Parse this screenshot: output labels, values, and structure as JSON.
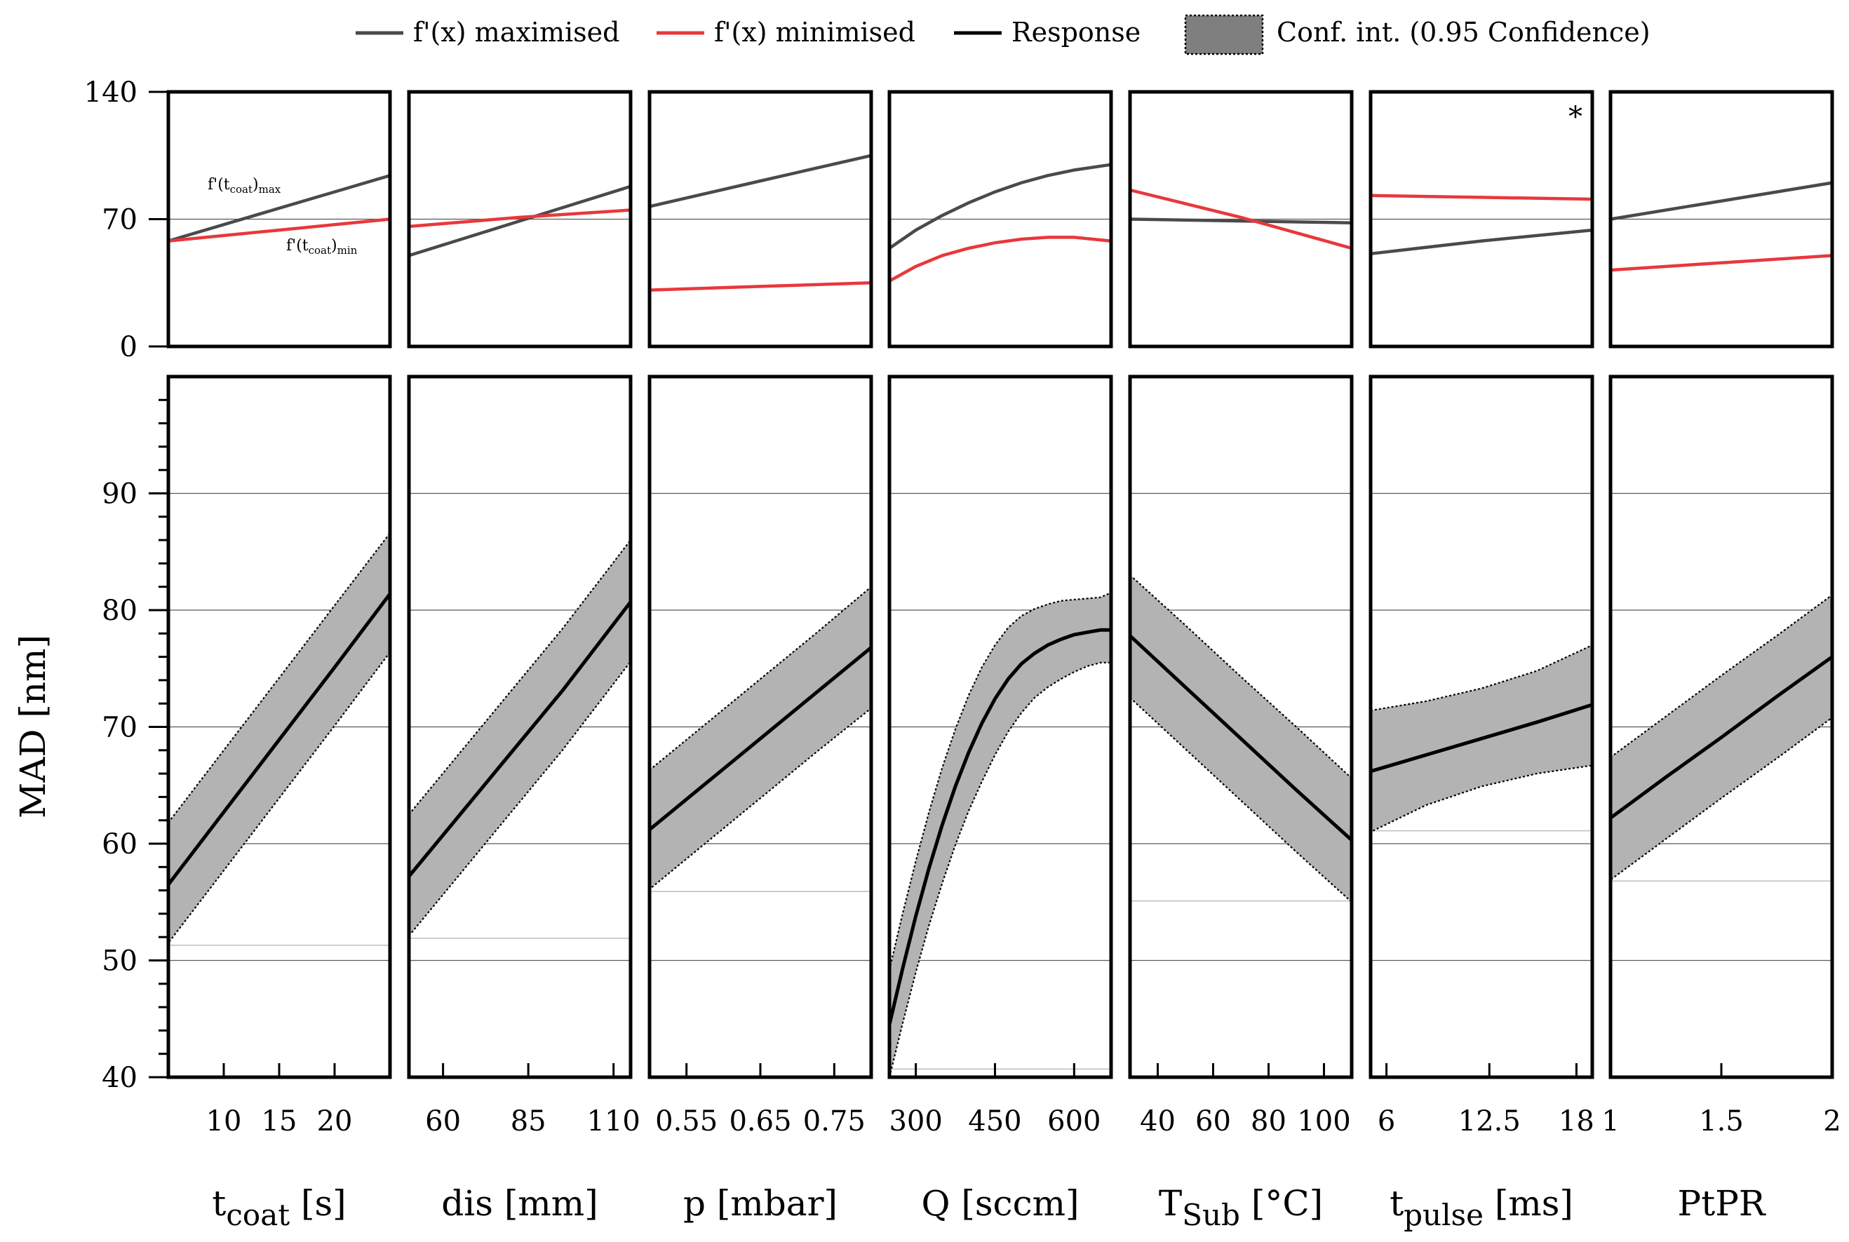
{
  "legend": {
    "entries": [
      {
        "label": "f'(x) maximised",
        "kind": "line",
        "color": "#4a4a4a"
      },
      {
        "label": "f'(x) minimised",
        "kind": "line",
        "color": "#e8383d"
      },
      {
        "label": "Response",
        "kind": "line",
        "color": "#000000"
      },
      {
        "label": "Conf. int. (0.95 Confidence)",
        "kind": "patch",
        "color": "#7f7f7f"
      }
    ]
  },
  "chart_data": {
    "type": "line",
    "layout": "two-row small multiples (7 factors)",
    "top_row": {
      "ylim": [
        0,
        140
      ],
      "yticks": [
        "0",
        "70",
        "140"
      ],
      "reference_line": 70,
      "description": "f'(x) maximised and minimised per factor"
    },
    "bottom_row": {
      "ylabel": "MAD [nm]",
      "ylim": [
        40,
        100
      ],
      "yticks": [
        "40",
        "50",
        "60",
        "70",
        "80",
        "90"
      ],
      "gridlines": [
        50,
        60,
        70,
        80,
        90
      ]
    },
    "panels": [
      {
        "xlabel": "t",
        "xlabel_sub": "coat",
        "xlabel_unit": " [s]",
        "xlim": [
          5,
          25
        ],
        "xticks": [
          10,
          15,
          20
        ],
        "xticklabels": [
          "10",
          "15",
          "20"
        ],
        "annotation_max": {
          "text": "f'(t",
          "sub": "coat",
          "tail": ")",
          "tail_sub": "max"
        },
        "annotation_min": {
          "text": "f'(t",
          "sub": "coat",
          "tail": ")",
          "tail_sub": "min"
        },
        "corner_mark": "",
        "deriv_max": {
          "x": [
            5,
            15,
            25
          ],
          "y": [
            58,
            76,
            94
          ]
        },
        "deriv_min": {
          "x": [
            5,
            15,
            25
          ],
          "y": [
            58,
            64,
            70
          ]
        },
        "response": {
          "x": [
            5,
            10,
            15,
            20,
            25
          ],
          "y": [
            56.5,
            62.7,
            68.9,
            75.1,
            81.4
          ]
        },
        "ci_lower": {
          "x": [
            5,
            10,
            15,
            20,
            25
          ],
          "y": [
            51.5,
            57.7,
            63.9,
            70.1,
            76.4
          ]
        },
        "ci_upper": {
          "x": [
            5,
            10,
            15,
            20,
            25
          ],
          "y": [
            61.8,
            68.0,
            74.2,
            80.4,
            86.6
          ]
        },
        "threshold": 51.3
      },
      {
        "xlabel": "dis",
        "xlabel_sub": "",
        "xlabel_unit": " [mm]",
        "xlim": [
          50,
          115
        ],
        "xticks": [
          60,
          85,
          110
        ],
        "xticklabels": [
          "60",
          "85",
          "110"
        ],
        "corner_mark": "",
        "deriv_max": {
          "x": [
            50,
            82.5,
            115
          ],
          "y": [
            50,
            69,
            88
          ]
        },
        "deriv_min": {
          "x": [
            50,
            82.5,
            115
          ],
          "y": [
            66,
            71,
            75
          ]
        },
        "response": {
          "x": [
            50,
            65,
            80,
            95,
            115
          ],
          "y": [
            57.2,
            62.5,
            67.8,
            73.1,
            80.7
          ]
        },
        "ci_lower": {
          "x": [
            50,
            65,
            80,
            95,
            115
          ],
          "y": [
            52.1,
            57.4,
            62.7,
            68.0,
            75.6
          ]
        },
        "ci_upper": {
          "x": [
            50,
            65,
            80,
            95,
            115
          ],
          "y": [
            62.5,
            67.8,
            73.1,
            78.4,
            86.0
          ]
        },
        "threshold": 51.9
      },
      {
        "xlabel": "p",
        "xlabel_sub": "",
        "xlabel_unit": " [mbar]",
        "xlim": [
          0.5,
          0.8
        ],
        "xticks": [
          0.55,
          0.65,
          0.75
        ],
        "xticklabels": [
          "0.55",
          "0.65",
          "0.75"
        ],
        "corner_mark": "",
        "deriv_max": {
          "x": [
            0.5,
            0.65,
            0.8
          ],
          "y": [
            77,
            91,
            105
          ]
        },
        "deriv_min": {
          "x": [
            0.5,
            0.65,
            0.8
          ],
          "y": [
            31,
            33,
            35
          ]
        },
        "response": {
          "x": [
            0.5,
            0.575,
            0.65,
            0.725,
            0.8
          ],
          "y": [
            61.2,
            65.1,
            69.0,
            72.9,
            76.8
          ]
        },
        "ci_lower": {
          "x": [
            0.5,
            0.575,
            0.65,
            0.725,
            0.8
          ],
          "y": [
            56.1,
            60.0,
            63.9,
            67.8,
            71.6
          ]
        },
        "ci_upper": {
          "x": [
            0.5,
            0.575,
            0.65,
            0.725,
            0.8
          ],
          "y": [
            66.3,
            70.2,
            74.1,
            78.0,
            82.0
          ]
        },
        "threshold": 55.9
      },
      {
        "xlabel": "Q",
        "xlabel_sub": "",
        "xlabel_unit": " [sccm]",
        "xlim": [
          250,
          670
        ],
        "xticks": [
          300,
          450,
          600
        ],
        "xticklabels": [
          "300",
          "450",
          "600"
        ],
        "corner_mark": "",
        "deriv_max": {
          "x": [
            250,
            300,
            350,
            400,
            450,
            500,
            550,
            600,
            670
          ],
          "y": [
            54,
            64,
            72,
            79,
            85,
            90,
            94,
            97,
            100
          ]
        },
        "deriv_min": {
          "x": [
            250,
            300,
            350,
            400,
            450,
            500,
            550,
            600,
            670
          ],
          "y": [
            36,
            44,
            50,
            54,
            57,
            59,
            60,
            60,
            58
          ]
        },
        "response": {
          "x": [
            250,
            275,
            300,
            325,
            350,
            375,
            400,
            425,
            450,
            475,
            500,
            525,
            550,
            575,
            600,
            625,
            650,
            670
          ],
          "y": [
            44.5,
            49.3,
            53.8,
            57.9,
            61.6,
            64.9,
            67.8,
            70.3,
            72.4,
            74.1,
            75.4,
            76.3,
            77.0,
            77.5,
            77.9,
            78.1,
            78.3,
            78.3
          ]
        },
        "ci_lower": {
          "x": [
            250,
            275,
            300,
            325,
            350,
            375,
            400,
            425,
            450,
            475,
            500,
            525,
            550,
            575,
            600,
            625,
            650,
            670
          ],
          "y": [
            40.0,
            44.6,
            49.0,
            53.0,
            56.6,
            59.9,
            62.8,
            65.3,
            67.6,
            69.6,
            71.2,
            72.5,
            73.4,
            74.1,
            74.7,
            75.2,
            75.5,
            75.5
          ]
        },
        "ci_upper": {
          "x": [
            250,
            275,
            300,
            325,
            350,
            375,
            400,
            425,
            450,
            475,
            500,
            525,
            550,
            575,
            600,
            625,
            650,
            670
          ],
          "y": [
            49.2,
            54.0,
            58.5,
            62.7,
            66.5,
            69.8,
            72.7,
            75.1,
            77.0,
            78.5,
            79.5,
            80.1,
            80.5,
            80.8,
            80.9,
            81.0,
            81.1,
            81.5
          ]
        },
        "threshold": 40.7
      },
      {
        "xlabel": "T",
        "xlabel_sub": "Sub",
        "xlabel_unit": " [°C]",
        "xlim": [
          30,
          110
        ],
        "xticks": [
          40,
          60,
          80,
          100
        ],
        "xticklabels": [
          "40",
          "60",
          "80",
          "100"
        ],
        "corner_mark": "",
        "deriv_max": {
          "x": [
            30,
            70,
            110
          ],
          "y": [
            70,
            69,
            68
          ]
        },
        "deriv_min": {
          "x": [
            30,
            70,
            110
          ],
          "y": [
            86,
            71,
            54
          ]
        },
        "response": {
          "x": [
            30,
            50,
            70,
            90,
            110
          ],
          "y": [
            77.8,
            73.4,
            69.0,
            64.6,
            60.3
          ]
        },
        "ci_lower": {
          "x": [
            30,
            50,
            70,
            90,
            110
          ],
          "y": [
            72.5,
            68.1,
            63.7,
            59.3,
            55.0
          ]
        },
        "ci_upper": {
          "x": [
            30,
            50,
            70,
            90,
            110
          ],
          "y": [
            83.0,
            78.7,
            74.3,
            70.0,
            65.6
          ]
        },
        "threshold": 55.1
      },
      {
        "xlabel": "t",
        "xlabel_sub": "pulse",
        "xlabel_unit": " [ms]",
        "xlim": [
          5,
          19
        ],
        "xticks": [
          6,
          12.5,
          18
        ],
        "xticklabels": [
          "6",
          "12.5",
          "18"
        ],
        "corner_mark": "*",
        "deriv_max": {
          "x": [
            5,
            12,
            19
          ],
          "y": [
            51,
            58,
            64
          ]
        },
        "deriv_min": {
          "x": [
            5,
            12,
            19
          ],
          "y": [
            83,
            82,
            81
          ]
        },
        "response": {
          "x": [
            5,
            8.5,
            12,
            15.5,
            19
          ],
          "y": [
            66.2,
            67.6,
            69.0,
            70.4,
            71.9
          ]
        },
        "ci_lower": {
          "x": [
            5,
            8.5,
            12,
            15.5,
            19
          ],
          "y": [
            61.0,
            63.3,
            64.9,
            66.0,
            66.7
          ]
        },
        "ci_upper": {
          "x": [
            5,
            8.5,
            12,
            15.5,
            19
          ],
          "y": [
            71.4,
            72.2,
            73.3,
            74.8,
            77.0
          ]
        },
        "threshold": 61.1
      },
      {
        "xlabel": "PtPR",
        "xlabel_sub": "",
        "xlabel_unit": "",
        "xlim": [
          1,
          2
        ],
        "xticks": [
          1,
          1.5,
          2
        ],
        "xticklabels": [
          "1",
          "1.5",
          "2"
        ],
        "corner_mark": "",
        "deriv_max": {
          "x": [
            1,
            1.5,
            2
          ],
          "y": [
            70,
            80,
            90
          ]
        },
        "deriv_min": {
          "x": [
            1,
            1.5,
            2
          ],
          "y": [
            42,
            46,
            50
          ]
        },
        "response": {
          "x": [
            1,
            1.25,
            1.5,
            1.75,
            2
          ],
          "y": [
            62.2,
            65.7,
            69.1,
            72.6,
            76.0
          ]
        },
        "ci_lower": {
          "x": [
            1,
            1.25,
            1.5,
            1.75,
            2
          ],
          "y": [
            56.9,
            60.4,
            63.9,
            67.3,
            70.8
          ]
        },
        "ci_upper": {
          "x": [
            1,
            1.25,
            1.5,
            1.75,
            2
          ],
          "y": [
            67.4,
            70.9,
            74.4,
            77.8,
            81.3
          ]
        },
        "threshold": 56.8
      }
    ]
  }
}
